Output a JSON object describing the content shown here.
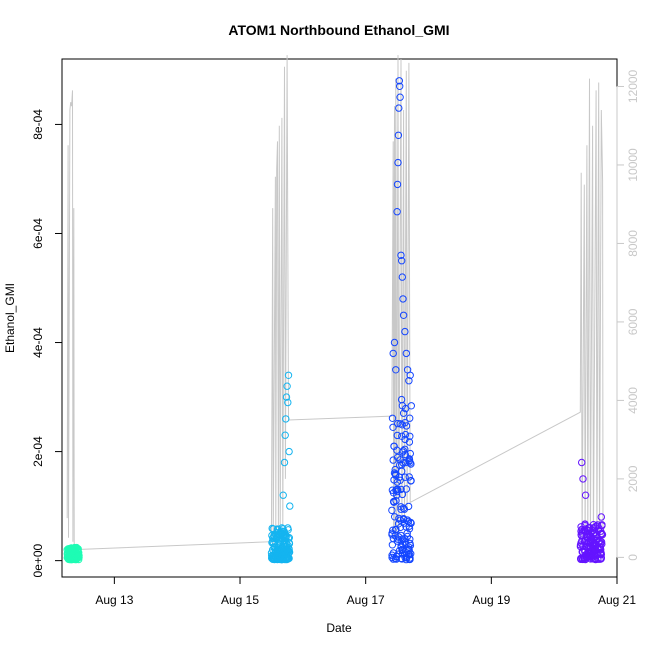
{
  "chart_data": {
    "type": "scatter",
    "title": "ATOM1 Northbound Ethanol_GMI",
    "xlabel": "Date",
    "ylabel": "Ethanol_GMI",
    "x_axis": {
      "type": "date",
      "range": [
        "2024-08-12T04:00",
        "2024-08-21T00:00"
      ],
      "ticks": [
        "Aug 13",
        "Aug 15",
        "Aug 17",
        "Aug 19",
        "Aug 21"
      ],
      "tick_dates": [
        "2024-08-13",
        "2024-08-15",
        "2024-08-17",
        "2024-08-19",
        "2024-08-21"
      ]
    },
    "y_left": {
      "range": [
        -3e-05,
        0.00092
      ],
      "ticks": [
        "0e+00",
        "2e-04",
        "4e-04",
        "6e-04",
        "8e-04"
      ],
      "tick_values": [
        0,
        0.0002,
        0.0004,
        0.0006,
        0.0008
      ]
    },
    "y_right": {
      "range": [
        -500,
        12700
      ],
      "ticks": [
        "0",
        "2000",
        "4000",
        "6000",
        "8000",
        "10000",
        "12000"
      ],
      "tick_values": [
        0,
        2000,
        4000,
        6000,
        8000,
        10000,
        12000
      ],
      "color": "#c8c8c8"
    },
    "grid": false,
    "legend": "none",
    "series": [
      {
        "kind": "points",
        "marker": "open-circle",
        "color": "#1efcb4",
        "x_range": [
          "2024-08-12T06:00",
          "2024-08-12T10:30"
        ],
        "points": [
          [
            "2024-08-12T06:00",
            2e-05
          ],
          [
            "2024-08-12T06:30",
            5e-06
          ],
          [
            "2024-08-12T07:00",
            2.2e-05
          ],
          [
            "2024-08-12T07:30",
            1e-05
          ],
          [
            "2024-08-12T08:00",
            1.8e-05
          ],
          [
            "2024-08-12T08:30",
            4e-06
          ],
          [
            "2024-08-12T09:00",
            2.1e-05
          ],
          [
            "2024-08-12T09:30",
            1.2e-05
          ],
          [
            "2024-08-12T10:00",
            1.9e-05
          ],
          [
            "2024-08-12T10:30",
            6e-06
          ]
        ],
        "band": [
          2e-06,
          2.4e-05
        ]
      },
      {
        "kind": "points",
        "marker": "open-circle",
        "color": "#14b4f0",
        "x_range": [
          "2024-08-15T12:00",
          "2024-08-15T19:00"
        ],
        "points": [
          [
            "2024-08-15T12:30",
            2e-05
          ],
          [
            "2024-08-15T14:00",
            8e-06
          ],
          [
            "2024-08-15T15:00",
            3.5e-05
          ],
          [
            "2024-08-15T16:00",
            6e-05
          ],
          [
            "2024-08-15T16:30",
            0.00012
          ],
          [
            "2024-08-15T17:00",
            0.00018
          ],
          [
            "2024-08-15T17:15",
            0.00023
          ],
          [
            "2024-08-15T17:30",
            0.00026
          ],
          [
            "2024-08-15T17:45",
            0.0003
          ],
          [
            "2024-08-15T18:00",
            0.00032
          ],
          [
            "2024-08-15T18:15",
            0.00029
          ],
          [
            "2024-08-15T18:30",
            0.00034
          ],
          [
            "2024-08-15T18:45",
            0.0002
          ],
          [
            "2024-08-15T19:00",
            0.0001
          ]
        ],
        "band": [
          2e-06,
          6e-05
        ]
      },
      {
        "kind": "points",
        "marker": "open-circle",
        "color": "#1446ff",
        "x_range": [
          "2024-08-17T10:00",
          "2024-08-17T17:30"
        ],
        "points": [
          [
            "2024-08-17T10:30",
            0.00038
          ],
          [
            "2024-08-17T11:00",
            0.0004
          ],
          [
            "2024-08-17T11:30",
            0.00035
          ],
          [
            "2024-08-17T12:00",
            0.00064
          ],
          [
            "2024-08-17T12:10",
            0.00069
          ],
          [
            "2024-08-17T12:20",
            0.00073
          ],
          [
            "2024-08-17T12:30",
            0.00078
          ],
          [
            "2024-08-17T12:40",
            0.00083
          ],
          [
            "2024-08-17T12:50",
            0.00088
          ],
          [
            "2024-08-17T13:00",
            0.00087
          ],
          [
            "2024-08-17T13:10",
            0.00085
          ],
          [
            "2024-08-17T13:30",
            0.00056
          ],
          [
            "2024-08-17T13:45",
            0.00055
          ],
          [
            "2024-08-17T14:00",
            0.00052
          ],
          [
            "2024-08-17T14:15",
            0.00048
          ],
          [
            "2024-08-17T14:30",
            0.00045
          ],
          [
            "2024-08-17T15:00",
            0.00042
          ],
          [
            "2024-08-17T15:30",
            0.00038
          ],
          [
            "2024-08-17T16:00",
            0.00035
          ],
          [
            "2024-08-17T16:30",
            0.00033
          ],
          [
            "2024-08-17T17:00",
            0.00034
          ]
        ],
        "band": [
          2e-06,
          0.0003
        ]
      },
      {
        "kind": "points",
        "marker": "open-circle",
        "color": "#6414ff",
        "x_range": [
          "2024-08-20T10:00",
          "2024-08-20T18:30"
        ],
        "points": [
          [
            "2024-08-20T10:30",
            0.00018
          ],
          [
            "2024-08-20T11:00",
            0.00015
          ],
          [
            "2024-08-20T12:00",
            0.00012
          ],
          [
            "2024-08-20T13:00",
            6e-05
          ],
          [
            "2024-08-20T14:00",
            4e-05
          ],
          [
            "2024-08-20T15:00",
            5e-05
          ],
          [
            "2024-08-20T16:00",
            4.5e-05
          ],
          [
            "2024-08-20T17:00",
            6e-05
          ],
          [
            "2024-08-20T18:00",
            8e-05
          ]
        ],
        "band": [
          2e-06,
          7e-05
        ]
      },
      {
        "kind": "line",
        "axis": "right",
        "color": "#c8c8c8",
        "name": "",
        "points": [
          [
            "2024-08-12T06:00",
            1000
          ],
          [
            "2024-08-12T06:20",
            10500
          ],
          [
            "2024-08-12T06:30",
            500
          ],
          [
            "2024-08-12T07:00",
            11400
          ],
          [
            "2024-08-12T07:20",
            11600
          ],
          [
            "2024-08-12T07:40",
            11500
          ],
          [
            "2024-08-12T08:00",
            11900
          ],
          [
            "2024-08-12T08:10",
            400
          ],
          [
            "2024-08-12T08:30",
            8900
          ],
          [
            "2024-08-12T08:40",
            300
          ],
          [
            "2024-08-12T10:00",
            200
          ],
          [
            "2024-08-15T12:00",
            400
          ],
          [
            "2024-08-15T12:30",
            8900
          ],
          [
            "2024-08-15T12:40",
            300
          ],
          [
            "2024-08-15T13:30",
            9700
          ],
          [
            "2024-08-15T13:40",
            400
          ],
          [
            "2024-08-15T14:00",
            9900
          ],
          [
            "2024-08-15T14:20",
            10600
          ],
          [
            "2024-08-15T14:40",
            500
          ],
          [
            "2024-08-15T15:00",
            11000
          ],
          [
            "2024-08-15T15:20",
            600
          ],
          [
            "2024-08-15T16:00",
            11200
          ],
          [
            "2024-08-15T16:20",
            800
          ],
          [
            "2024-08-15T17:00",
            12500
          ],
          [
            "2024-08-15T17:20",
            2000
          ],
          [
            "2024-08-15T18:00",
            12800
          ],
          [
            "2024-08-15T18:30",
            3500
          ],
          [
            "2024-08-17T10:00",
            3600
          ],
          [
            "2024-08-17T10:30",
            10600
          ],
          [
            "2024-08-17T10:40",
            500
          ],
          [
            "2024-08-17T11:00",
            11500
          ],
          [
            "2024-08-17T11:10",
            400
          ],
          [
            "2024-08-17T11:30",
            12200
          ],
          [
            "2024-08-17T11:50",
            500
          ],
          [
            "2024-08-17T12:20",
            12800
          ],
          [
            "2024-08-17T12:40",
            600
          ],
          [
            "2024-08-17T13:30",
            12700
          ],
          [
            "2024-08-17T13:50",
            800
          ],
          [
            "2024-08-17T14:30",
            11400
          ],
          [
            "2024-08-17T14:50",
            900
          ],
          [
            "2024-08-17T15:30",
            12400
          ],
          [
            "2024-08-17T15:50",
            1200
          ],
          [
            "2024-08-17T16:30",
            12600
          ],
          [
            "2024-08-17T17:00",
            1400
          ],
          [
            "2024-08-20T10:00",
            3700
          ],
          [
            "2024-08-20T10:20",
            9800
          ],
          [
            "2024-08-20T10:40",
            400
          ],
          [
            "2024-08-20T11:30",
            9500
          ],
          [
            "2024-08-20T11:50",
            300
          ],
          [
            "2024-08-20T12:30",
            10500
          ],
          [
            "2024-08-20T12:50",
            300
          ],
          [
            "2024-08-20T13:30",
            12200
          ],
          [
            "2024-08-20T13:50",
            400
          ],
          [
            "2024-08-20T14:40",
            11000
          ],
          [
            "2024-08-20T15:00",
            300
          ],
          [
            "2024-08-20T16:00",
            11900
          ],
          [
            "2024-08-20T16:20",
            400
          ],
          [
            "2024-08-20T17:00",
            12100
          ],
          [
            "2024-08-20T17:20",
            500
          ],
          [
            "2024-08-20T18:00",
            11400
          ],
          [
            "2024-08-20T18:30",
            9600
          ],
          [
            "2024-08-20T18:40",
            300
          ]
        ]
      }
    ]
  }
}
